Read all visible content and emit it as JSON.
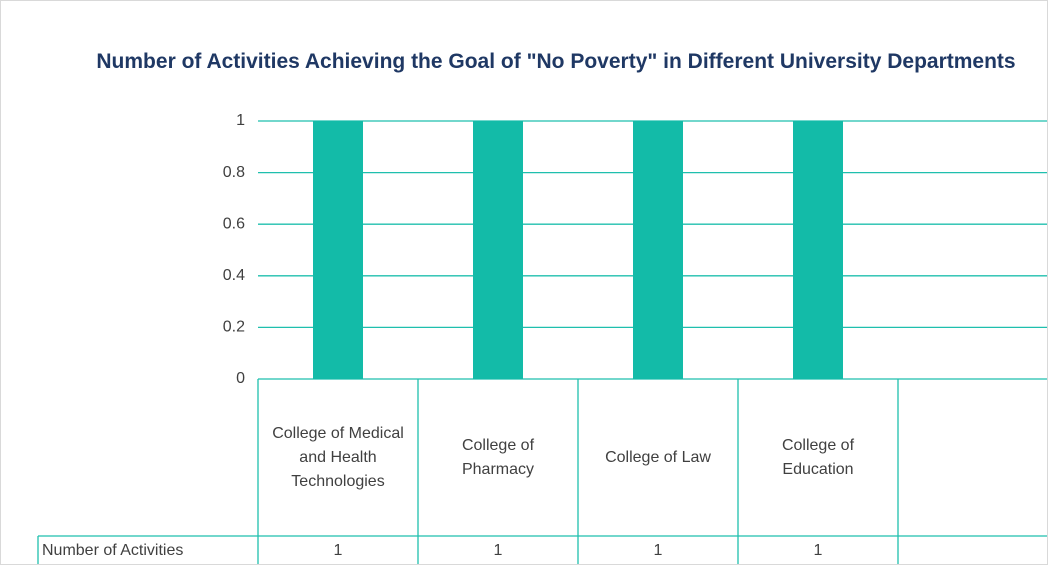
{
  "chart_data": {
    "type": "bar",
    "title": "Number of Activities Achieving the Goal of \"No Poverty\" in Different University Departments",
    "categories": [
      "College of Medical and Health Technologies",
      "College of Pharmacy",
      "College of Law",
      "College of Education",
      null
    ],
    "series": [
      {
        "name": "Number of Activities",
        "color": "#13bba8",
        "values": [
          1,
          1,
          1,
          1,
          null
        ]
      }
    ],
    "ylim": [
      0,
      1
    ],
    "yticks": [
      0,
      0.2,
      0.4,
      0.6,
      0.8,
      1
    ],
    "grid": true,
    "data_table": true
  }
}
